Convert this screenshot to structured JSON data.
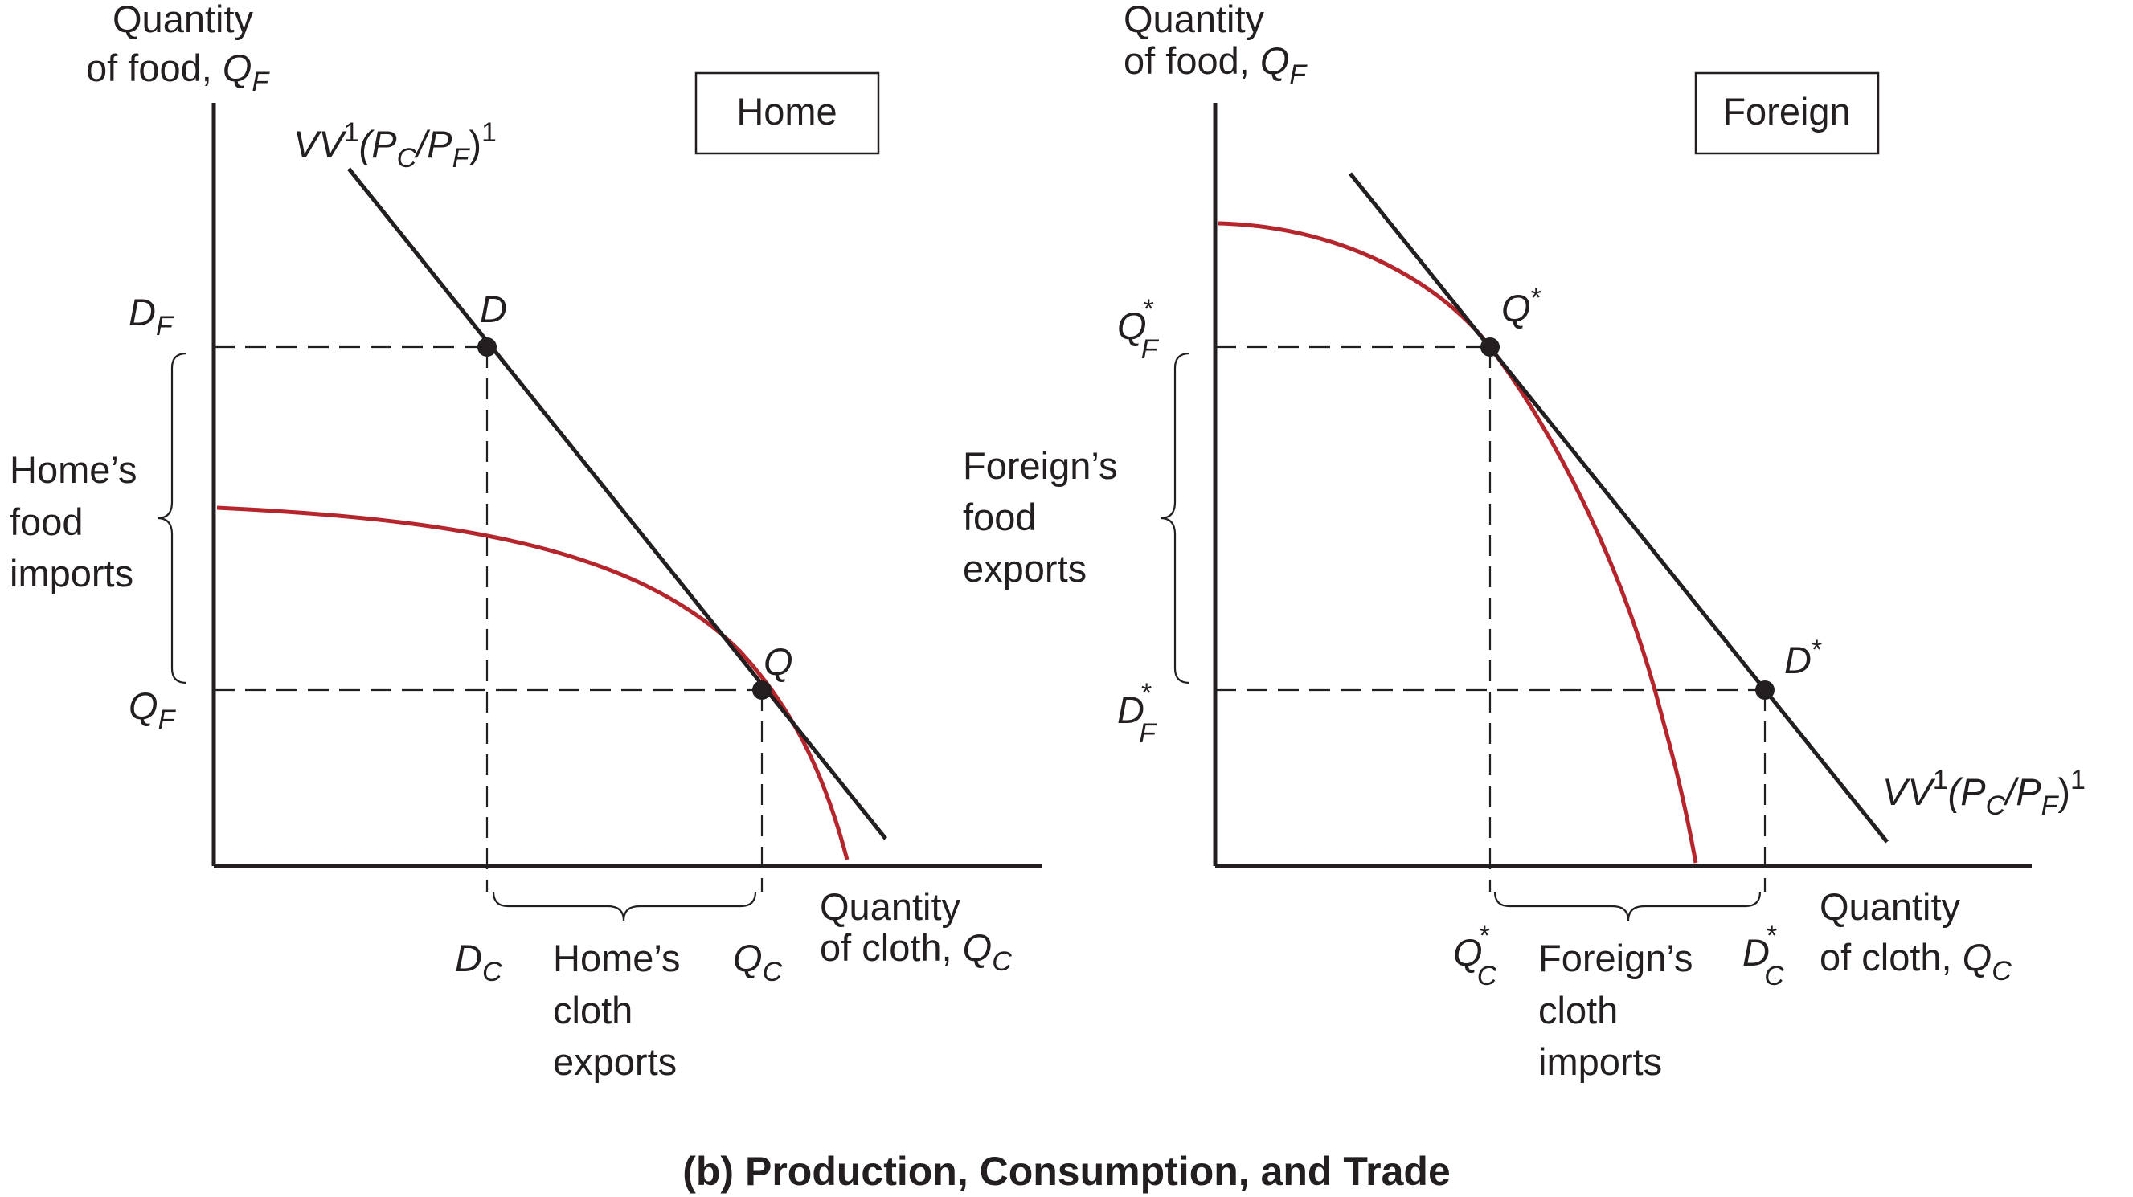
{
  "caption": "(b) Production, Consumption, and Trade",
  "colors": {
    "ink": "#231f20",
    "ppf": "#b5252b"
  },
  "home": {
    "box_label": "Home",
    "y_axis_line1": "Quantity",
    "y_axis_line2": "of food, ",
    "y_axis_var": "Q",
    "y_axis_var_sub": "F",
    "x_axis_line1": "Quantity",
    "x_axis_line2": "of cloth, ",
    "x_axis_var": "Q",
    "x_axis_var_sub": "C",
    "line_label_main": "VV",
    "line_label_sup1": "1",
    "line_label_paren_open": "(P",
    "line_label_sub1": "C",
    "line_label_slash": "/P",
    "line_label_sub2": "F",
    "line_label_paren_close": ")",
    "line_label_sup2": "1",
    "point_D": "D",
    "point_Q": "Q",
    "DF_main": "D",
    "DF_sub": "F",
    "QF_main": "Q",
    "QF_sub": "F",
    "DC_main": "D",
    "DC_sub": "C",
    "QC_main": "Q",
    "QC_sub": "C",
    "imports_lines": [
      "Home’s",
      "food",
      "imports"
    ],
    "exports_lines": [
      "Home’s",
      "cloth",
      "exports"
    ]
  },
  "foreign": {
    "box_label": "Foreign",
    "y_axis_line1": "Quantity",
    "y_axis_line2": "of food, ",
    "y_axis_var": "Q",
    "y_axis_var_sub": "F",
    "x_axis_line1": "Quantity",
    "x_axis_line2": "of cloth, ",
    "x_axis_var": "Q",
    "x_axis_var_sub": "C",
    "line_label_main": "VV",
    "line_label_sup1": "1",
    "line_label_paren_open": "(P",
    "line_label_sub1": "C",
    "line_label_slash": "/P",
    "line_label_sub2": "F",
    "line_label_paren_close": ")",
    "line_label_sup2": "1",
    "point_Q": "Q",
    "point_D": "D",
    "star": "*",
    "QF_main": "Q",
    "QF_sub": "F",
    "DF_main": "D",
    "DF_sub": "F",
    "QC_main": "Q",
    "QC_sub": "C",
    "DC_main": "D",
    "DC_sub": "C",
    "exports_lines": [
      "Foreign’s",
      "food",
      "exports"
    ],
    "imports_lines": [
      "Foreign’s",
      "cloth",
      "imports"
    ]
  }
}
